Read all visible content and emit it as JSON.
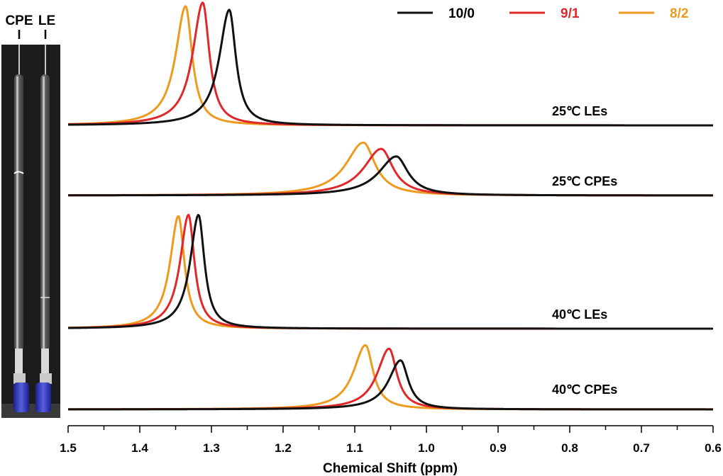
{
  "photo": {
    "tube_labels": [
      "CPE",
      "LE"
    ]
  },
  "chart_data": {
    "type": "line",
    "xlabel": "Chemical Shift (ppm)",
    "xlim": [
      1.5,
      0.6
    ],
    "x_reversed": true,
    "x_ticks": [
      "1.5",
      "1.4",
      "1.3",
      "1.2",
      "1.1",
      "1.0",
      "0.9",
      "0.8",
      "0.7",
      "0.6"
    ],
    "legend_placement": "top-right",
    "series": [
      {
        "name": "10/0",
        "color": "#111111"
      },
      {
        "name": "9/1",
        "color": "#e0282b"
      },
      {
        "name": "8/2",
        "color": "#ee9a1e"
      }
    ],
    "panels": [
      {
        "label": "25℃ LEs",
        "peaks": [
          {
            "series": "10/0",
            "peak_ppm": 1.275,
            "rel_height": 0.96
          },
          {
            "series": "9/1",
            "peak_ppm": 1.312,
            "rel_height": 1.02
          },
          {
            "series": "8/2",
            "peak_ppm": 1.336,
            "rel_height": 0.99
          }
        ]
      },
      {
        "label": "25℃ CPEs",
        "peaks": [
          {
            "series": "10/0",
            "peak_ppm": 1.042,
            "rel_height": 0.31
          },
          {
            "series": "9/1",
            "peak_ppm": 1.063,
            "rel_height": 0.37
          },
          {
            "series": "8/2",
            "peak_ppm": 1.088,
            "rel_height": 0.42
          }
        ]
      },
      {
        "label": "40℃ LEs",
        "peaks": [
          {
            "series": "10/0",
            "peak_ppm": 1.318,
            "rel_height": 0.98
          },
          {
            "series": "9/1",
            "peak_ppm": 1.332,
            "rel_height": 0.98
          },
          {
            "series": "8/2",
            "peak_ppm": 1.346,
            "rel_height": 0.97
          }
        ]
      },
      {
        "label": "40℃ CPEs",
        "peaks": [
          {
            "series": "10/0",
            "peak_ppm": 1.036,
            "rel_height": 0.42
          },
          {
            "series": "9/1",
            "peak_ppm": 1.052,
            "rel_height": 0.52
          },
          {
            "series": "8/2",
            "peak_ppm": 1.085,
            "rel_height": 0.55
          }
        ]
      }
    ]
  }
}
